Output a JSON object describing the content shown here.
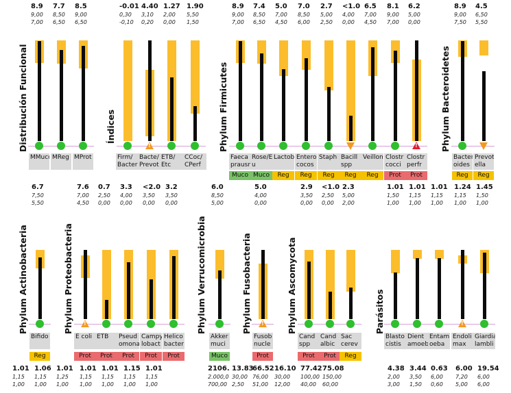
{
  "colors": {
    "range": "#fbbd2b",
    "value": "#0b0b0b",
    "ok": "#2fbf2f",
    "warn": "#f29a20",
    "alert": "#e01c2c",
    "label_bg": "#d9d9d9",
    "tag_reg": "#f6c200",
    "tag_muco": "#79c267",
    "tag_prot": "#e96b6e"
  },
  "chart_data": [
    {
      "type": "bar",
      "title": "Distribución Funcional",
      "items": [
        {
          "label": "MMuco",
          "value": "8.9",
          "ref_high": "9,00",
          "ref_low": "7,00",
          "status": "ok",
          "tag": ""
        },
        {
          "label": "MReg",
          "value": "7.7",
          "ref_high": "8,50",
          "ref_low": "6,50",
          "status": "ok",
          "tag": ""
        },
        {
          "label": "MProt",
          "value": "8.5",
          "ref_high": "9,00",
          "ref_low": "6,50",
          "status": "ok",
          "tag": ""
        }
      ]
    },
    {
      "type": "bar",
      "title": "Índices",
      "items": [
        {
          "label": "Firm/\nBacter",
          "value": "-0.01",
          "ref_high": "0,30",
          "ref_low": "-0,10",
          "status": "ok",
          "tag": ""
        },
        {
          "label": "Bacte/\nPrevot",
          "value": "4.40",
          "ref_high": "3,10",
          "ref_low": "0,20",
          "status": "warn",
          "tag": ""
        },
        {
          "label": "ETB/\nEtc",
          "value": "1.27",
          "ref_high": "2,00",
          "ref_low": "0,00",
          "status": "ok",
          "tag": ""
        },
        {
          "label": "CCoc/\nCPerf",
          "value": "1.90",
          "ref_high": "5,50",
          "ref_low": "1,50",
          "status": "ok",
          "tag": ""
        }
      ]
    },
    {
      "type": "bar",
      "title": "Phylum Firmicutes",
      "items": [
        {
          "label": "Faeca\nprausn",
          "value": "8.9",
          "ref_high": "9,00",
          "ref_low": "7,00",
          "status": "ok",
          "tag": "Muco"
        },
        {
          "label": "Rose/E\nu",
          "value": "7.4",
          "ref_high": "8,50",
          "ref_low": "6,50",
          "status": "ok",
          "tag": "Muco"
        },
        {
          "label": "Lactob",
          "value": "5.0",
          "ref_high": "7,00",
          "ref_low": "4,50",
          "status": "ok",
          "tag": "Reg"
        },
        {
          "label": "Entero\ncocos",
          "value": "7.0",
          "ref_high": "8,50",
          "ref_low": "6,00",
          "status": "ok",
          "tag": "Reg"
        },
        {
          "label": "Staph",
          "value": "2.7",
          "ref_high": "5,00",
          "ref_low": "2,50",
          "status": "ok",
          "tag": "Reg"
        },
        {
          "label": "Bacill\nspp",
          "value": "<1.0",
          "ref_high": "4,00",
          "ref_low": "0,00",
          "status": "down",
          "tag": "Reg"
        },
        {
          "label": "Veillon",
          "value": "6.5",
          "ref_high": "7,00",
          "ref_low": "4,50",
          "status": "ok",
          "tag": "Reg"
        },
        {
          "label": "Clostr\ncocci",
          "value": "8.1",
          "ref_high": "9,00",
          "ref_low": "7,00",
          "status": "ok",
          "tag": "Prot"
        },
        {
          "label": "Clostr\nperfr",
          "value": "6.2",
          "ref_high": "5,00",
          "ref_low": "0,00",
          "status": "alert",
          "tag": "Prot"
        }
      ]
    },
    {
      "type": "bar",
      "title": "Phylum Bacteroidetes",
      "items": [
        {
          "label": "Bacter\noides",
          "value": "8.9",
          "ref_high": "9,00",
          "ref_low": "7,50",
          "status": "ok",
          "tag": "Reg"
        },
        {
          "label": "Prevot\nella",
          "value": "4.5",
          "ref_high": "6,50",
          "ref_low": "5,50",
          "status": "down",
          "tag": "Reg"
        }
      ]
    },
    {
      "type": "bar",
      "title": "Phylum Actinobacteria",
      "items": [
        {
          "label": "Bifido",
          "value": "6.7",
          "ref_high": "7,50",
          "ref_low": "5,50",
          "status": "ok",
          "tag": "Reg"
        }
      ]
    },
    {
      "type": "bar",
      "title": "Phylum Proteobacteria",
      "items": [
        {
          "label": "E coli",
          "value": "7.6",
          "ref_high": "7,00",
          "ref_low": "4,50",
          "status": "warn",
          "tag": "Prot"
        },
        {
          "label": "ETB",
          "value": "0.7",
          "ref_high": "2,50",
          "ref_low": "0,00",
          "status": "ok",
          "tag": "Prot"
        },
        {
          "label": "Pseud\nomona",
          "value": "3.3",
          "ref_high": "4,00",
          "ref_low": "0,00",
          "status": "ok",
          "tag": "Prot"
        },
        {
          "label": "Campy\nlobact",
          "value": "<2.0",
          "ref_high": "3,50",
          "ref_low": "0,00",
          "status": "ok",
          "tag": "Prot"
        },
        {
          "label": "Helico\nbacter",
          "value": "3.2",
          "ref_high": "3,50",
          "ref_low": "0,00",
          "status": "ok",
          "tag": "Prot"
        }
      ]
    },
    {
      "type": "bar",
      "title": "Phylum Verrucomicrobia",
      "items": [
        {
          "label": "Akker\nmuci",
          "value": "6.0",
          "ref_high": "8,50",
          "ref_low": "5,00",
          "status": "ok",
          "tag": "Muco"
        }
      ]
    },
    {
      "type": "bar",
      "title": "Phylum Fusobacteria",
      "items": [
        {
          "label": "Fusob\nnucle",
          "value": "5.0",
          "ref_high": "4,00",
          "ref_low": "0,00",
          "status": "warn",
          "tag": "Prot"
        }
      ]
    },
    {
      "type": "bar",
      "title": "Phylum Ascomycota",
      "items": [
        {
          "label": "Cand\nspp",
          "value": "2.9",
          "ref_high": "3,50",
          "ref_low": "0,00",
          "status": "ok",
          "tag": "Prot"
        },
        {
          "label": "Cand\nalbic",
          "value": "<1.0",
          "ref_high": "2,50",
          "ref_low": "0,00",
          "status": "ok",
          "tag": "Prot"
        },
        {
          "label": "Sac\ncerev",
          "value": "2.3",
          "ref_high": "5,00",
          "ref_low": "2,00",
          "status": "ok",
          "tag": "Reg"
        }
      ]
    },
    {
      "type": "bar",
      "title": "Parásitos",
      "items": [
        {
          "label": "Blasto\ncistis",
          "value": "1.01",
          "ref_high": "1,50",
          "ref_low": "1,00",
          "status": "ok",
          "tag": ""
        },
        {
          "label": "Dient\namoeb",
          "value": "1.01",
          "ref_high": "1,15",
          "ref_low": "1,00",
          "status": "ok",
          "tag": ""
        },
        {
          "label": "Entam\noeba",
          "value": "1.01",
          "ref_high": "1,15",
          "ref_low": "1,00",
          "status": "ok",
          "tag": ""
        },
        {
          "label": "Endoli\nmax",
          "value": "1.24",
          "ref_high": "1,15",
          "ref_low": "1,00",
          "status": "warn",
          "tag": ""
        },
        {
          "label": "Giardia\nlambli",
          "value": "1.45",
          "ref_high": "1,50",
          "ref_low": "1,00",
          "status": "ok",
          "tag": ""
        }
      ]
    }
  ],
  "bottom_values": [
    {
      "value": "1.01",
      "ref_high": "1,15",
      "ref_low": "1,00"
    },
    {
      "value": "1.06",
      "ref_high": "1,15",
      "ref_low": "1,00"
    },
    {
      "value": "1.01",
      "ref_high": "1,25",
      "ref_low": "1,00"
    },
    {
      "value": "1.01",
      "ref_high": "1,15",
      "ref_low": "1,00"
    },
    {
      "value": "1.01",
      "ref_high": "1,15",
      "ref_low": "1,00"
    },
    {
      "value": "1.15",
      "ref_high": "1,15",
      "ref_low": "1,00"
    },
    {
      "value": "1.01",
      "ref_high": "1,15",
      "ref_low": "1,00"
    },
    {
      "value": "2106.",
      "ref_high": "2.000,0",
      "ref_low": "700,00"
    },
    {
      "value": "13.83",
      "ref_high": "30,00",
      "ref_low": "2,50"
    },
    {
      "value": "66.52",
      "ref_high": "76,00",
      "ref_low": "51,00"
    },
    {
      "value": "16.10",
      "ref_high": "30,00",
      "ref_low": "12,00"
    },
    {
      "value": "77.42",
      "ref_high": "100,00",
      "ref_low": "40,00"
    },
    {
      "value": "75.08",
      "ref_high": "150,00",
      "ref_low": "60,00"
    },
    {
      "value": "4.38",
      "ref_high": "2,00",
      "ref_low": "3,00"
    },
    {
      "value": "3.44",
      "ref_high": "3,50",
      "ref_low": "1,50"
    },
    {
      "value": "0.63",
      "ref_high": "6,00",
      "ref_low": "0,60"
    },
    {
      "value": "6.00",
      "ref_high": "7,20",
      "ref_low": "5,00"
    },
    {
      "value": "19.54",
      "ref_high": "6,00",
      "ref_low": "6,00"
    }
  ]
}
